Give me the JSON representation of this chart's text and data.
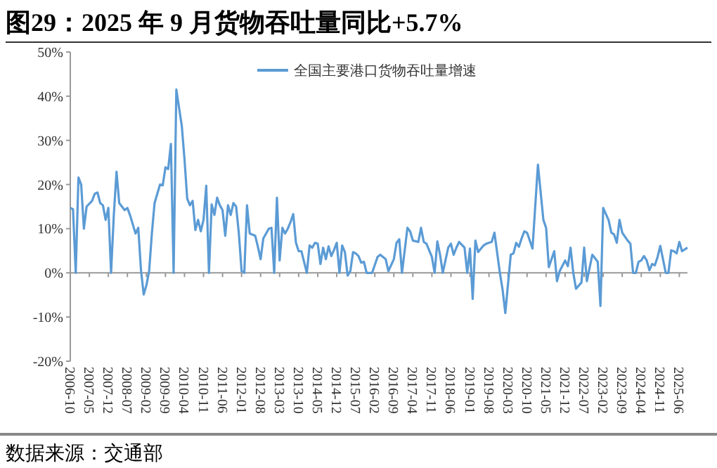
{
  "chart_data": {
    "type": "line",
    "title": "图29：2025 年 9 月货物吞吐量同比+5.7%",
    "annotations": [
      "数据来源：交通部"
    ],
    "x": [
      "2006-10",
      "2006-11",
      "2006-12",
      "2007-01",
      "2007-02",
      "2007-03",
      "2007-04",
      "2007-06",
      "2007-07",
      "2007-08",
      "2007-09",
      "2007-10",
      "2007-11",
      "2007-12",
      "2008-01",
      "2008-02",
      "2008-03",
      "2008-04",
      "2008-06",
      "2008-07",
      "2008-08",
      "2008-10",
      "2008-11",
      "2008-12",
      "2009-01",
      "2009-02",
      "2009-03",
      "2009-04",
      "2009-05",
      "2009-06",
      "2009-07",
      "2009-08",
      "2009-09",
      "2009-10",
      "2009-11",
      "2009-12",
      "2010-01",
      "2010-03",
      "2010-04",
      "2010-05",
      "2010-06",
      "2010-07",
      "2010-08",
      "2010-09",
      "2010-10",
      "2010-11",
      "2010-12",
      "2011-01",
      "2011-02",
      "2011-03",
      "2011-04",
      "2011-05",
      "2011-06",
      "2011-07",
      "2011-08",
      "2011-09",
      "2011-10",
      "2011-11",
      "2011-12",
      "2012-01",
      "2012-02",
      "2012-03",
      "2012-04",
      "2012-06",
      "2012-07",
      "2012-08",
      "2012-09",
      "2012-11",
      "2012-12",
      "2013-01",
      "2013-02",
      "2013-03",
      "2013-04",
      "2013-05",
      "2013-06",
      "2013-07",
      "2013-08",
      "2013-09",
      "2013-10",
      "2013-11",
      "2014-01",
      "2014-02",
      "2014-03",
      "2014-04",
      "2014-05",
      "2014-06",
      "2014-07",
      "2014-08",
      "2014-09",
      "2014-10",
      "2014-11",
      "2014-12",
      "2015-01",
      "2015-02",
      "2015-03",
      "2015-04",
      "2015-05",
      "2015-06",
      "2015-07",
      "2015-08",
      "2015-09",
      "2015-10",
      "2015-11",
      "2015-12",
      "2016-01",
      "2016-03",
      "2016-04",
      "2016-06",
      "2016-07",
      "2016-09",
      "2016-10",
      "2016-11",
      "2016-12",
      "2017-02",
      "2017-03",
      "2017-04",
      "2017-06",
      "2017-07",
      "2017-08",
      "2017-09",
      "2017-11",
      "2017-12",
      "2018-01",
      "2018-02",
      "2018-03",
      "2018-05",
      "2018-06",
      "2018-07",
      "2018-08",
      "2018-09",
      "2018-11",
      "2018-12",
      "2019-01",
      "2019-02",
      "2019-03",
      "2019-04",
      "2019-06",
      "2019-07",
      "2019-09",
      "2019-10",
      "2019-12",
      "2020-01",
      "2020-02",
      "2020-04",
      "2020-05",
      "2020-06",
      "2020-07",
      "2020-08",
      "2020-09",
      "2020-10",
      "2020-12",
      "2021-02",
      "2021-04",
      "2021-05",
      "2021-06",
      "2021-08",
      "2021-09",
      "2021-10",
      "2021-12",
      "2022-01",
      "2022-02",
      "2022-03",
      "2022-04",
      "2022-06",
      "2022-07",
      "2022-08",
      "2022-10",
      "2022-12",
      "2023-01",
      "2023-02",
      "2023-04",
      "2023-05",
      "2023-06",
      "2023-07",
      "2023-08",
      "2023-09",
      "2023-11",
      "2023-12",
      "2024-01",
      "2024-02",
      "2024-03",
      "2024-04",
      "2024-05",
      "2024-06",
      "2024-07",
      "2024-08",
      "2024-09",
      "2024-10",
      "2024-11",
      "2025-01",
      "2025-02",
      "2025-03",
      "2025-04",
      "2025-05",
      "2025-06",
      "2025-07",
      "2025-09"
    ],
    "series": [
      {
        "name": "全国主要港口货物吞吐量增速",
        "color": "#5b9bd5",
        "values": [
          14.7,
          14.4,
          0,
          21.6,
          20,
          10,
          15,
          16.3,
          17.9,
          18.2,
          15.8,
          15.3,
          12,
          14.7,
          0,
          13,
          22.9,
          15.8,
          14.2,
          14.7,
          13,
          8.9,
          10.2,
          0.6,
          -4.9,
          -2.8,
          0.4,
          8.9,
          15.8,
          17.9,
          20,
          19.8,
          23.9,
          23.5,
          29.2,
          0,
          41.5,
          33.3,
          25.8,
          16.8,
          15.3,
          16.3,
          9.7,
          12,
          9.4,
          12,
          19.7,
          0,
          15.5,
          13.1,
          17,
          15.3,
          14.2,
          8.4,
          15.3,
          13.1,
          15.8,
          15,
          8.9,
          0.4,
          0,
          15.3,
          8.9,
          8.4,
          5.9,
          3.1,
          7.8,
          10,
          10.2,
          0,
          17,
          2.8,
          10.2,
          8.9,
          10,
          11.5,
          13.3,
          6.8,
          4.9,
          4.9,
          0,
          6.2,
          5.7,
          6.8,
          6.6,
          2,
          5.7,
          3.1,
          6,
          3.8,
          5.2,
          6.8,
          0,
          6.2,
          4.7,
          -0.6,
          0.4,
          4.7,
          4.4,
          3.8,
          2.3,
          2.5,
          0,
          0,
          0,
          3.6,
          4.1,
          3.1,
          0.4,
          3.1,
          6.8,
          7.6,
          0,
          10.2,
          9.4,
          7.3,
          7,
          10.2,
          7,
          6.6,
          3.6,
          0,
          7.1,
          4.1,
          0,
          5.7,
          6.6,
          4.1,
          5.7,
          7,
          5.7,
          0,
          5.5,
          -5.9,
          7.3,
          4.7,
          6.2,
          6.6,
          7,
          9.1,
          0,
          -3.8,
          -9.1,
          4.1,
          4.4,
          6.8,
          5.9,
          7.8,
          9.4,
          9.1,
          5.5,
          24.5,
          12,
          10.2,
          1.3,
          4.9,
          -1.9,
          0.4,
          2.8,
          1.5,
          5.7,
          0,
          -3.6,
          -2.2,
          5.7,
          -1.9,
          4.1,
          2.5,
          -7.5,
          14.7,
          11.9,
          9.1,
          8.7,
          6.8,
          12,
          9.1,
          7.3,
          6.6,
          0,
          0,
          2.5,
          2.8,
          3.8,
          2.8,
          0.6,
          2,
          1.7,
          3.6,
          6.1,
          0,
          0,
          5.1,
          4.9,
          4.4,
          7,
          4.9,
          5.7
        ]
      }
    ],
    "xlim": [
      "2006-10",
      "2025-09"
    ],
    "xticks": [
      "2006-10",
      "2007-05",
      "2007-12",
      "2008-07",
      "2009-02",
      "2009-09",
      "2010-04",
      "2010-11",
      "2011-06",
      "2012-01",
      "2012-08",
      "2013-03",
      "2013-10",
      "2014-05",
      "2014-12",
      "2015-07",
      "2016-02",
      "2016-09",
      "2017-04",
      "2017-11",
      "2018-06",
      "2019-01",
      "2019-08",
      "2020-03",
      "2020-10",
      "2021-05",
      "2021-12",
      "2022-07",
      "2023-02",
      "2023-09",
      "2024-04",
      "2024-11",
      "2025-06"
    ],
    "ylim": [
      -20,
      50
    ],
    "yticks": [
      {
        "value": -20,
        "label": "-20%"
      },
      {
        "value": -10,
        "label": "-10%"
      },
      {
        "value": 0,
        "label": "0%"
      },
      {
        "value": 10,
        "label": "10%"
      },
      {
        "value": 20,
        "label": "20%"
      },
      {
        "value": 30,
        "label": "30%"
      },
      {
        "value": 40,
        "label": "40%"
      },
      {
        "value": 50,
        "label": "50%"
      }
    ],
    "legend": "top"
  }
}
